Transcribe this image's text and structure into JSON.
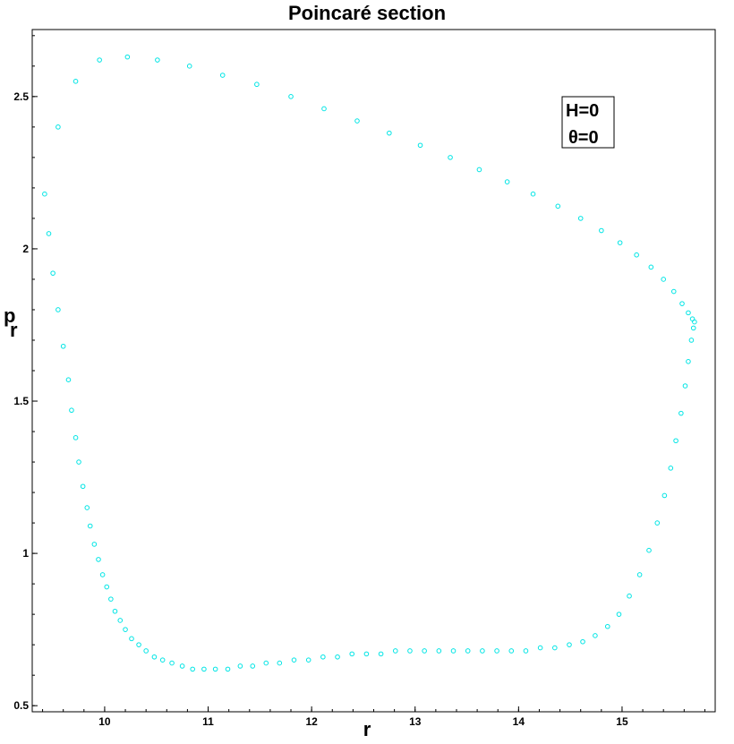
{
  "chart_data": {
    "type": "scatter",
    "title": "Poincaré section",
    "xlabel": "r",
    "ylabel": "p",
    "ylabel_sub": "r",
    "xlim": [
      9.3,
      15.9
    ],
    "ylim": [
      0.48,
      2.72
    ],
    "x_ticks": [
      10,
      11,
      12,
      13,
      14,
      15
    ],
    "y_ticks": [
      0.5,
      1,
      1.5,
      2,
      2.5
    ],
    "x_tick_labels": [
      "10",
      "11",
      "12",
      "13",
      "14",
      "15"
    ],
    "y_tick_labels": [
      "0.5",
      "1",
      "1.5",
      "2",
      "2.5"
    ],
    "marker": "open-circle",
    "color": "#00e5e5",
    "grid": false,
    "annotations": [
      "H=0",
      "θ=0"
    ],
    "annotation_placement": "top-right",
    "series": [
      {
        "x": [
          9.42,
          9.46,
          9.5,
          9.55,
          9.6,
          9.65,
          9.68,
          9.72,
          9.75,
          9.79,
          9.83,
          9.86,
          9.9,
          9.94,
          9.98,
          10.02,
          10.06,
          10.1,
          10.15,
          10.2,
          10.26,
          10.33,
          10.4,
          10.48,
          10.56,
          10.65,
          10.75,
          10.85,
          10.96,
          11.07,
          11.19,
          11.31,
          11.43,
          11.56,
          11.69,
          11.83,
          11.97,
          12.11,
          12.25,
          12.39,
          12.53,
          12.67,
          12.81,
          12.95,
          13.09,
          13.23,
          13.37,
          13.51,
          13.65,
          13.79,
          13.93,
          14.07,
          14.21,
          14.35,
          14.49,
          14.62,
          14.74,
          14.86,
          14.97,
          15.07,
          15.17,
          15.26,
          15.34,
          15.41,
          15.47,
          15.52,
          15.57,
          15.61,
          15.64,
          15.67,
          15.69,
          15.7,
          15.68,
          15.64,
          15.58,
          15.5,
          15.4,
          15.28,
          15.14,
          14.98,
          14.8,
          14.6,
          14.38,
          14.14,
          13.89,
          13.62,
          13.34,
          13.05,
          12.75,
          12.44,
          12.12,
          11.8,
          11.47,
          11.14,
          10.82,
          10.51,
          10.22,
          9.95,
          9.72,
          9.55
        ],
        "y": [
          2.18,
          2.05,
          1.92,
          1.8,
          1.68,
          1.57,
          1.47,
          1.38,
          1.3,
          1.22,
          1.15,
          1.09,
          1.03,
          0.98,
          0.93,
          0.89,
          0.85,
          0.81,
          0.78,
          0.75,
          0.72,
          0.7,
          0.68,
          0.66,
          0.65,
          0.64,
          0.63,
          0.62,
          0.62,
          0.62,
          0.62,
          0.63,
          0.63,
          0.64,
          0.64,
          0.65,
          0.65,
          0.66,
          0.66,
          0.67,
          0.67,
          0.67,
          0.68,
          0.68,
          0.68,
          0.68,
          0.68,
          0.68,
          0.68,
          0.68,
          0.68,
          0.68,
          0.69,
          0.69,
          0.7,
          0.71,
          0.73,
          0.76,
          0.8,
          0.86,
          0.93,
          1.01,
          1.1,
          1.19,
          1.28,
          1.37,
          1.46,
          1.55,
          1.63,
          1.7,
          1.74,
          1.76,
          1.77,
          1.79,
          1.82,
          1.86,
          1.9,
          1.94,
          1.98,
          2.02,
          2.06,
          2.1,
          2.14,
          2.18,
          2.22,
          2.26,
          2.3,
          2.34,
          2.38,
          2.42,
          2.46,
          2.5,
          2.54,
          2.57,
          2.6,
          2.62,
          2.63,
          2.62,
          2.55,
          2.4
        ]
      }
    ]
  }
}
